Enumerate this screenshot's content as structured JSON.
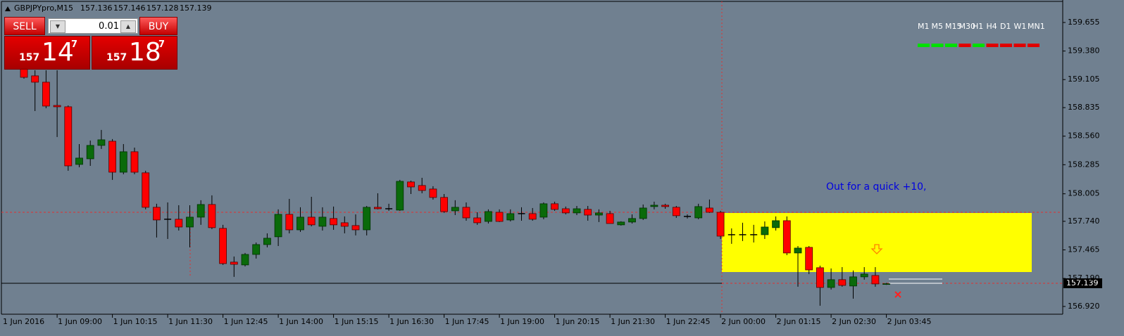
{
  "header": {
    "symbol": "GBPJPYpro,M15"
  },
  "trade_panel": {
    "sell_label": "SELL",
    "buy_label": "BUY",
    "lot": "0.01",
    "sell_price": {
      "big": "157",
      "pips": "14",
      "point": "7"
    },
    "buy_price": {
      "big": "157",
      "pips": "18",
      "point": "7"
    }
  },
  "timeframes": [
    {
      "label": "M1",
      "color": "#00e000"
    },
    {
      "label": "M5",
      "color": "#00e000"
    },
    {
      "label": "M15",
      "color": "#00e000"
    },
    {
      "label": "M30",
      "color": "#e00000"
    },
    {
      "label": "H1",
      "color": "#00e000"
    },
    {
      "label": "H4",
      "color": "#e00000"
    },
    {
      "label": "D1",
      "color": "#e00000"
    },
    {
      "label": "W1",
      "color": "#e00000"
    },
    {
      "label": "MN1",
      "color": "#e00000"
    }
  ],
  "chart_data": {
    "type": "candlestick",
    "start_label": "1 Jun 2016",
    "annotation": "Out for a quick +10,",
    "categories": [
      null,
      null,
      null,
      "1 Jun 09:00",
      null,
      null,
      null,
      null,
      "1 Jun 10:15",
      null,
      null,
      null,
      null,
      "1 Jun 11:30",
      null,
      null,
      null,
      null,
      "1 Jun 12:45",
      null,
      null,
      null,
      null,
      "1 Jun 14:00",
      null,
      null,
      null,
      null,
      "1 Jun 15:15",
      null,
      null,
      null,
      null,
      "1 Jun 16:30",
      null,
      null,
      null,
      null,
      "1 Jun 17:45",
      null,
      null,
      null,
      null,
      "1 Jun 19:00",
      null,
      null,
      null,
      null,
      "1 Jun 20:15",
      null,
      null,
      null,
      null,
      "1 Jun 21:30",
      null,
      null,
      null,
      null,
      "1 Jun 22:45",
      null,
      null,
      null,
      null,
      "2 Jun 00:00",
      null,
      null,
      null,
      null,
      "2 Jun 01:15",
      null,
      null,
      null,
      null,
      "2 Jun 02:30",
      null,
      null,
      null,
      null,
      "2 Jun 03:45"
    ],
    "open": [
      159.209,
      159.141,
      159.08,
      158.856,
      158.843,
      158.288,
      158.342,
      158.471,
      158.511,
      158.213,
      158.41,
      158.207,
      157.875,
      157.76,
      157.76,
      157.685,
      157.78,
      157.902,
      157.672,
      157.347,
      157.32,
      157.421,
      157.516,
      157.591,
      157.807,
      157.658,
      157.78,
      157.692,
      157.767,
      157.726,
      157.699,
      157.658,
      157.875,
      157.861,
      157.848,
      158.119,
      158.085,
      158.051,
      157.97,
      157.841,
      157.875,
      157.773,
      157.739,
      157.827,
      157.753,
      157.814,
      157.814,
      157.78,
      157.909,
      157.861,
      157.821,
      157.855,
      157.8,
      157.814,
      157.706,
      157.733,
      157.767,
      157.882,
      157.895,
      157.875,
      157.787,
      157.773,
      157.868,
      157.827,
      157.611,
      157.611,
      157.611,
      157.611,
      157.679,
      157.746,
      157.435,
      157.489,
      157.293,
      157.103,
      157.178,
      157.117,
      157.205,
      157.218,
      157.136
    ],
    "high": [
      159.263,
      159.195,
      159.195,
      159.195,
      158.856,
      158.484,
      158.518,
      158.62,
      158.532,
      158.484,
      158.45,
      158.227,
      157.909,
      157.922,
      157.895,
      157.895,
      157.943,
      157.99,
      157.706,
      157.401,
      157.435,
      157.536,
      157.624,
      157.855,
      157.956,
      157.875,
      157.976,
      157.875,
      157.882,
      157.787,
      157.807,
      157.888,
      158.01,
      157.909,
      158.139,
      158.132,
      158.159,
      158.078,
      158.003,
      157.943,
      157.922,
      157.827,
      157.855,
      157.855,
      157.855,
      157.875,
      157.868,
      157.922,
      157.929,
      157.882,
      157.888,
      157.888,
      157.855,
      157.841,
      157.74,
      157.807,
      157.902,
      157.929,
      157.909,
      157.888,
      157.807,
      157.909,
      157.95,
      157.841,
      157.672,
      157.726,
      157.706,
      157.739,
      157.787,
      157.787,
      157.502,
      157.502,
      157.313,
      157.286,
      157.299,
      157.266,
      157.299,
      157.299,
      157.146
    ],
    "low": [
      159.114,
      158.802,
      158.829,
      158.552,
      158.227,
      158.261,
      158.274,
      158.437,
      158.139,
      158.193,
      158.193,
      157.855,
      157.584,
      157.57,
      157.651,
      157.489,
      157.706,
      157.665,
      157.32,
      157.205,
      157.306,
      157.381,
      157.489,
      157.502,
      157.624,
      157.638,
      157.692,
      157.651,
      157.658,
      157.624,
      157.604,
      157.604,
      157.855,
      157.841,
      157.841,
      158.003,
      158.01,
      157.949,
      157.821,
      157.8,
      157.746,
      157.706,
      157.719,
      157.733,
      157.739,
      157.746,
      157.746,
      157.76,
      157.841,
      157.807,
      157.8,
      157.746,
      157.733,
      157.719,
      157.699,
      157.719,
      157.753,
      157.855,
      157.861,
      157.773,
      157.767,
      157.76,
      157.821,
      157.57,
      157.523,
      157.55,
      157.536,
      157.57,
      157.651,
      157.414,
      157.11,
      157.232,
      156.927,
      157.083,
      157.11,
      156.995,
      157.178,
      157.11,
      157.128
    ],
    "close": [
      159.127,
      159.08,
      158.85,
      158.843,
      158.274,
      158.349,
      158.471,
      158.525,
      158.213,
      158.41,
      158.213,
      157.875,
      157.753,
      157.76,
      157.685,
      157.78,
      157.902,
      157.679,
      157.333,
      157.326,
      157.421,
      157.516,
      157.577,
      157.807,
      157.658,
      157.78,
      157.706,
      157.78,
      157.706,
      157.692,
      157.658,
      157.875,
      157.861,
      157.861,
      158.125,
      158.071,
      158.037,
      157.97,
      157.834,
      157.875,
      157.773,
      157.726,
      157.834,
      157.739,
      157.814,
      157.814,
      157.76,
      157.909,
      157.855,
      157.821,
      157.861,
      157.8,
      157.821,
      157.719,
      157.733,
      157.767,
      157.868,
      157.895,
      157.882,
      157.794,
      157.787,
      157.882,
      157.827,
      157.597,
      157.611,
      157.611,
      157.611,
      157.685,
      157.746,
      157.435,
      157.482,
      157.272,
      157.103,
      157.178,
      157.123,
      157.205,
      157.232,
      157.137,
      157.139
    ],
    "up_color": "#0a6a0a",
    "down_color": "#ff0000",
    "ylim": [
      156.852,
      159.858
    ],
    "yticks": [
      159.655,
      {
        "value": 159.38,
        "label": "159.380"
      },
      159.105,
      158.835,
      {
        "value": 158.56,
        "label": "158.560"
      },
      158.285,
      158.005,
      {
        "value": 157.74,
        "label": "157.740"
      },
      157.465,
      {
        "value": 157.19,
        "label": "157.190"
      },
      {
        "value": 156.92,
        "label": "156.920"
      }
    ],
    "grid": false
  }
}
